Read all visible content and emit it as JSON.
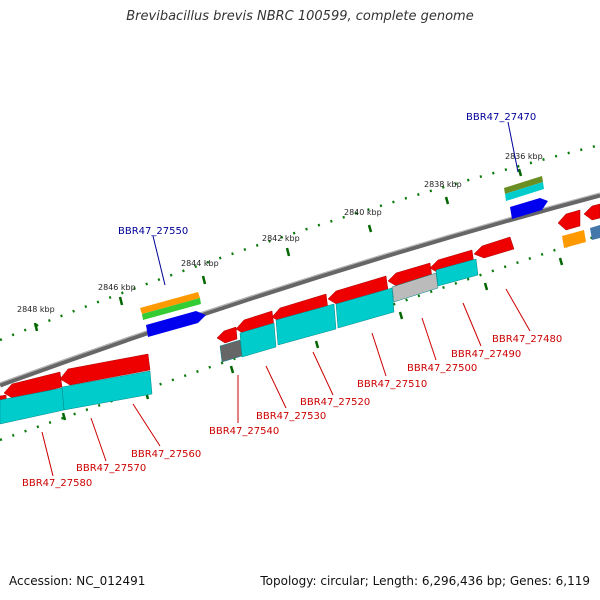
{
  "header": {
    "title": "Brevibacillus brevis NBRC 100599, complete genome"
  },
  "footer": {
    "accession": "Accession: NC_012491",
    "summary": "Topology: circular; Length: 6,296,436 bp; Genes: 6,119"
  },
  "scale": {
    "ticks": [
      "2836 kbp",
      "2838 kbp",
      "2840 kbp",
      "2842 kbp",
      "2844 kbp",
      "2846 kbp",
      "2848 kbp"
    ]
  },
  "genes": {
    "reverse_strand": [
      "BBR47_27480",
      "BBR47_27490",
      "BBR47_27500",
      "BBR47_27510",
      "BBR47_27520",
      "BBR47_27530",
      "BBR47_27540",
      "BBR47_27560",
      "BBR47_27570",
      "BBR47_27580"
    ],
    "forward_strand": [
      "BBR47_27470",
      "BBR47_27550"
    ]
  },
  "colors": {
    "cds": "#ee0000",
    "orf": "#00cccc",
    "gene_forward": "#0000ee",
    "hypothetical": "#777777",
    "backbone": "#888888",
    "tick": "#006600",
    "label_reverse": "#cc0000",
    "label_forward": "#000099"
  }
}
